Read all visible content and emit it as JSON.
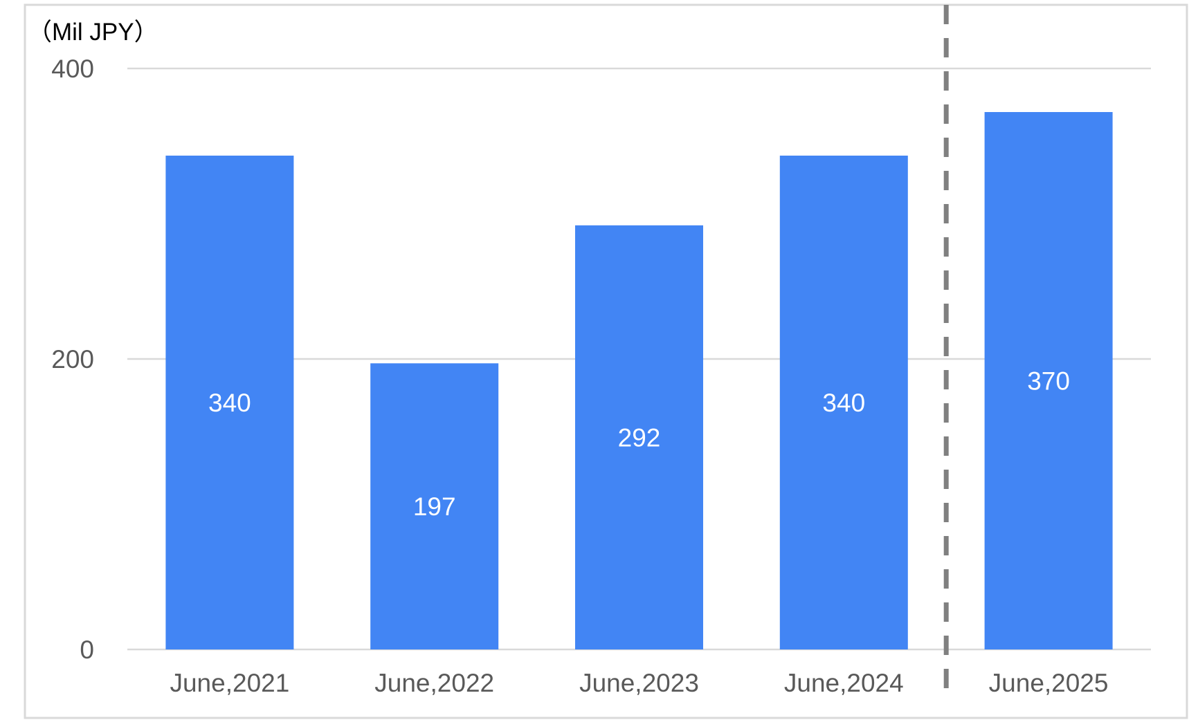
{
  "chart_data": {
    "type": "bar",
    "title": "",
    "unit_label": "（Mil JPY）",
    "xlabel": "",
    "ylabel": "",
    "categories": [
      "June,2021",
      "June,2022",
      "June,2023",
      "June,2024",
      "June,2025"
    ],
    "values": [
      340,
      197,
      292,
      340,
      370
    ],
    "data_labels": [
      "340",
      "197",
      "292",
      "340",
      "370"
    ],
    "ylim": [
      0,
      400
    ],
    "yticks": [
      0,
      200,
      400
    ],
    "ytick_labels": [
      "0",
      "200",
      "400"
    ],
    "grid": true,
    "legend": "none",
    "separator": {
      "style": "dashed",
      "between": [
        "June,2024",
        "June,2025"
      ]
    },
    "colors": {
      "bar": "#4285F4",
      "grid": "#D9D9D9",
      "separator": "#808080",
      "tick_text": "#595959",
      "data_label": "#FFFFFF",
      "border": "#D9D9D9"
    }
  }
}
